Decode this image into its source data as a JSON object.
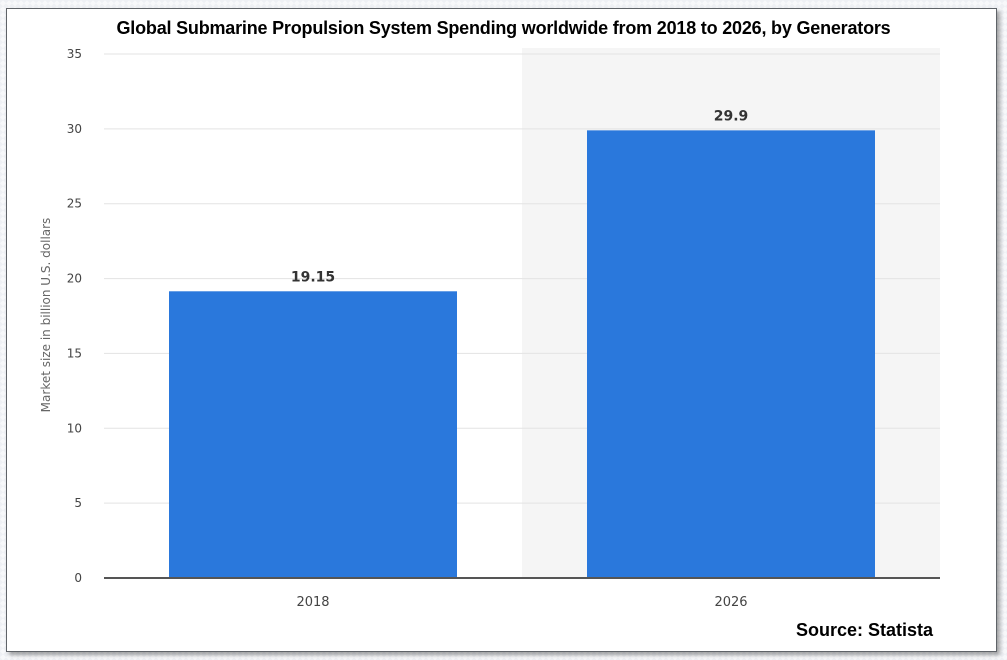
{
  "chart_data": {
    "type": "bar",
    "title": "Global Submarine Propulsion System Spending worldwide from 2018 to 2026, by Generators",
    "categories": [
      "2018",
      "2026"
    ],
    "values": [
      19.15,
      29.9
    ],
    "value_labels": [
      "19.15",
      "29.9"
    ],
    "xlabel": "",
    "ylabel": "Market size in billion U.S. dollars",
    "ylim": [
      0,
      35
    ],
    "yticks": [
      0,
      5,
      10,
      15,
      20,
      25,
      30,
      35
    ],
    "grid": true,
    "legend": "none",
    "bar_color": "#2a78dc",
    "highlight_band_color": "#f5f5f5",
    "source": "Source: Statista"
  }
}
